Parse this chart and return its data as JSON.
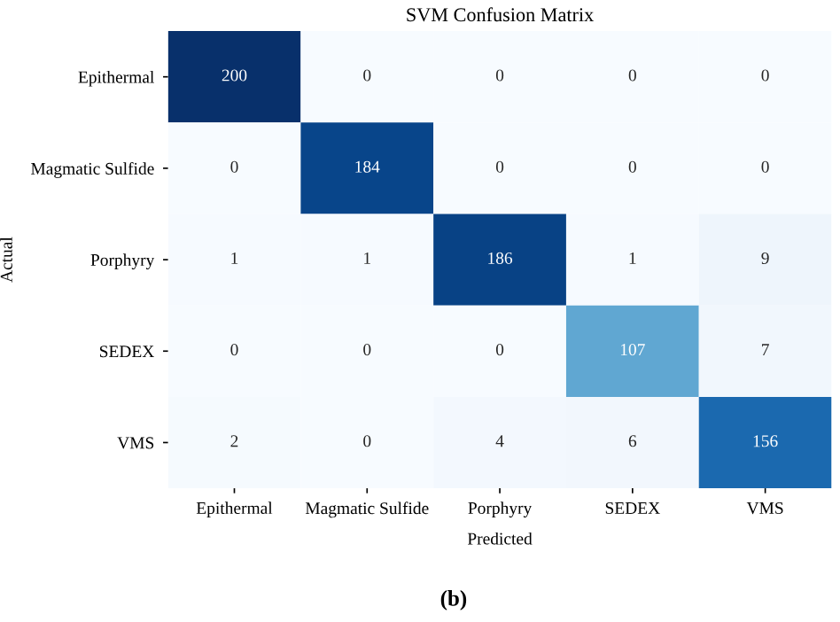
{
  "chart_data": {
    "type": "heatmap",
    "title": "SVM Confusion Matrix",
    "xlabel": "Predicted",
    "ylabel": "Actual",
    "categories": [
      "Epithermal",
      "Magmatic Sulfide",
      "Porphyry",
      "SEDEX",
      "VMS"
    ],
    "y_categories": [
      "Epithermal",
      "Magmatic Sulfide",
      "Porphyry",
      "SEDEX",
      "VMS"
    ],
    "cells": [
      [
        200,
        0,
        0,
        0,
        0
      ],
      [
        0,
        184,
        0,
        0,
        0
      ],
      [
        1,
        1,
        186,
        1,
        9
      ],
      [
        0,
        0,
        0,
        107,
        7
      ],
      [
        2,
        0,
        4,
        6,
        156
      ]
    ],
    "data_labels": true,
    "annotations": [
      "(b)"
    ]
  }
}
